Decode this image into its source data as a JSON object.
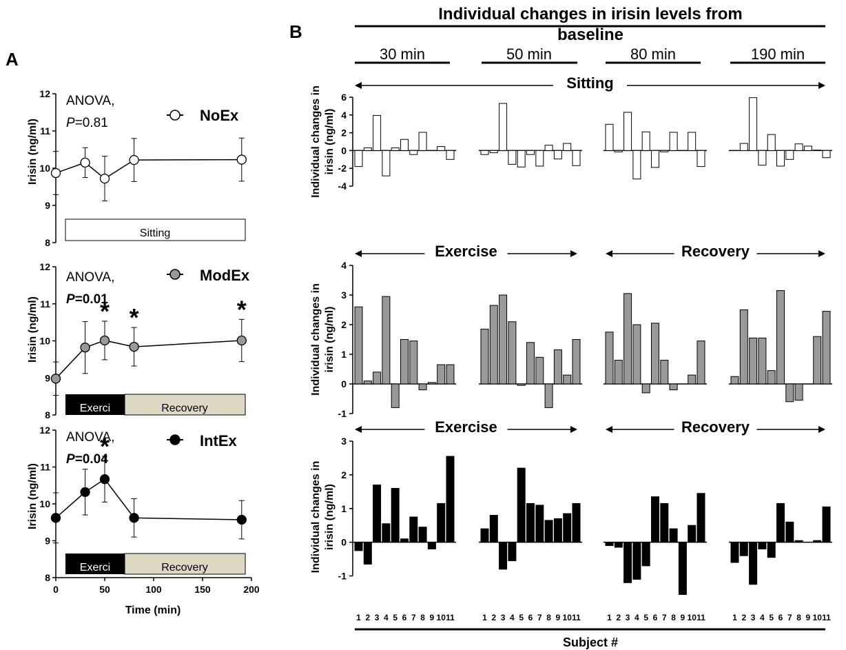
{
  "panel_a": {
    "letter": "A",
    "ylabel": "Irisin (ng/ml)",
    "xlabel": "Time (min)",
    "p_symbol": "P",
    "charts": [
      {
        "anova": "ANOVA,",
        "p_value": "=0.81",
        "legend": "NoEx",
        "bar_label": "Sitting"
      },
      {
        "anova": "ANOVA,",
        "p_value": "=0.01",
        "legend": "ModEx",
        "bar_labels": [
          "Exerci",
          "Recovery"
        ]
      },
      {
        "anova": "ANOVA,",
        "p_value": "=0.04",
        "legend": "IntEx",
        "bar_labels": [
          "Exerci",
          "Recovery"
        ]
      }
    ]
  },
  "panel_b": {
    "letter": "B",
    "title_line1": "Individual changes in irisin levels from",
    "title_line2": "baseline",
    "time_headers": [
      "30 min",
      "50 min",
      "80 min",
      "190 min"
    ],
    "ylabel_line1": "Individual changes in",
    "ylabel_line2": "irisin (ng/ml)",
    "xlabel": "Subject #",
    "subject_labels": [
      "1",
      "2",
      "3",
      "4",
      "5",
      "6",
      "7",
      "8",
      "9",
      "10",
      "11"
    ],
    "row_labels": [
      {
        "text": "Sitting",
        "span": "all"
      },
      {
        "text": [
          "Exercise",
          "Recovery"
        ],
        "span": "split"
      },
      {
        "text": [
          "Exercise",
          "Recovery"
        ],
        "span": "split"
      }
    ]
  },
  "colors": {
    "noex": "#ffffff",
    "modex": "#999999",
    "intex": "#000000",
    "recovery_bar": "#ddd8c4"
  },
  "chart_data": [
    {
      "type": "line",
      "name": "NoEx",
      "x": [
        0,
        30,
        50,
        80,
        190
      ],
      "y": [
        9.87,
        10.15,
        9.72,
        10.22,
        10.23
      ],
      "error": [
        0.58,
        0.4,
        0.6,
        0.58,
        0.58
      ],
      "significant": [
        false,
        false,
        false,
        false,
        false
      ],
      "ylim": [
        8,
        12
      ],
      "yticks": [
        8,
        9,
        10,
        11,
        12
      ],
      "xlim": [
        0,
        200
      ],
      "xticks": [
        0,
        50,
        100,
        150,
        200
      ],
      "marker_color": "#ffffff"
    },
    {
      "type": "line",
      "name": "ModEx",
      "x": [
        0,
        30,
        50,
        80,
        190
      ],
      "y": [
        8.98,
        9.82,
        10.01,
        9.84,
        10.01
      ],
      "error": [
        0.45,
        0.7,
        0.52,
        0.52,
        0.57
      ],
      "significant": [
        false,
        false,
        true,
        true,
        true
      ],
      "ylim": [
        8,
        12
      ],
      "yticks": [
        8,
        9,
        10,
        11,
        12
      ],
      "xlim": [
        0,
        200
      ],
      "xticks": [
        0,
        50,
        100,
        150,
        200
      ],
      "marker_color": "#999999"
    },
    {
      "type": "line",
      "name": "IntEx",
      "x": [
        0,
        30,
        50,
        80,
        190
      ],
      "y": [
        9.62,
        10.32,
        10.67,
        9.62,
        9.57
      ],
      "error": [
        0.68,
        0.62,
        0.62,
        0.52,
        0.52
      ],
      "significant": [
        false,
        false,
        true,
        false,
        false
      ],
      "ylim": [
        8,
        12
      ],
      "yticks": [
        8,
        9,
        10,
        11,
        12
      ],
      "xlim": [
        0,
        200
      ],
      "xticks": [
        0,
        50,
        100,
        150,
        200
      ],
      "marker_color": "#000000"
    },
    {
      "type": "bar",
      "name": "NoEx",
      "categories": [
        "1",
        "2",
        "3",
        "4",
        "5",
        "6",
        "7",
        "8",
        "9",
        "10",
        "11"
      ],
      "ylim": [
        -4,
        6
      ],
      "yticks": [
        -4,
        -2,
        0,
        2,
        4,
        6
      ],
      "fill": "#ffffff",
      "series": [
        {
          "name": "30 min",
          "values": [
            -1.8,
            0.3,
            3.95,
            -2.85,
            0.3,
            1.25,
            -0.45,
            2.05,
            0.0,
            0.45,
            -1.0
          ]
        },
        {
          "name": "50 min",
          "values": [
            -0.45,
            -0.25,
            5.3,
            -1.55,
            -1.85,
            -0.45,
            -1.75,
            0.6,
            -0.95,
            0.8,
            -1.7
          ]
        },
        {
          "name": "80 min",
          "values": [
            2.95,
            -0.15,
            4.3,
            -3.2,
            2.1,
            -1.9,
            -0.15,
            2.05,
            0.0,
            2.05,
            -1.8
          ]
        },
        {
          "name": "190 min",
          "values": [
            0.0,
            0.8,
            5.95,
            -1.65,
            1.8,
            -1.75,
            -1.0,
            0.75,
            0.5,
            0.05,
            -0.8
          ]
        }
      ]
    },
    {
      "type": "bar",
      "name": "ModEx",
      "categories": [
        "1",
        "2",
        "3",
        "4",
        "5",
        "6",
        "7",
        "8",
        "9",
        "10",
        "11"
      ],
      "ylim": [
        -1,
        4
      ],
      "yticks": [
        -1,
        0,
        1,
        2,
        3,
        4
      ],
      "fill": "#999999",
      "series": [
        {
          "name": "30 min",
          "values": [
            2.6,
            0.1,
            0.4,
            2.95,
            -0.8,
            1.5,
            1.45,
            -0.2,
            0.05,
            0.65,
            0.65
          ]
        },
        {
          "name": "50 min",
          "values": [
            1.85,
            2.65,
            3.0,
            2.1,
            -0.05,
            1.4,
            0.9,
            -0.8,
            1.15,
            0.3,
            1.5
          ]
        },
        {
          "name": "80 min",
          "values": [
            1.75,
            0.8,
            3.05,
            2.0,
            -0.3,
            2.05,
            0.8,
            -0.2,
            0.0,
            0.3,
            1.45
          ]
        },
        {
          "name": "190 min",
          "values": [
            0.25,
            2.5,
            1.55,
            1.55,
            0.45,
            3.15,
            -0.6,
            -0.55,
            0.0,
            1.6,
            2.45
          ]
        }
      ]
    },
    {
      "type": "bar",
      "name": "IntEx",
      "categories": [
        "1",
        "2",
        "3",
        "4",
        "5",
        "6",
        "7",
        "8",
        "9",
        "10",
        "11"
      ],
      "ylim": [
        -1.5,
        3
      ],
      "yticks": [
        -1,
        0,
        1,
        2,
        3
      ],
      "fill": "#000000",
      "series": [
        {
          "name": "30 min",
          "values": [
            -0.25,
            -0.65,
            1.7,
            0.55,
            1.6,
            0.1,
            0.75,
            0.45,
            -0.2,
            1.15,
            2.55
          ]
        },
        {
          "name": "50 min",
          "values": [
            0.4,
            0.8,
            -0.8,
            -0.55,
            2.2,
            1.15,
            1.1,
            0.65,
            0.7,
            0.85,
            1.15
          ]
        },
        {
          "name": "80 min",
          "values": [
            -0.1,
            -0.15,
            -1.2,
            -1.1,
            -0.7,
            1.35,
            1.15,
            0.4,
            -1.55,
            0.5,
            1.45
          ]
        },
        {
          "name": "190 min",
          "values": [
            -0.6,
            -0.4,
            -1.25,
            -0.2,
            -0.45,
            1.15,
            0.6,
            0.05,
            0.0,
            0.05,
            1.05
          ]
        }
      ]
    }
  ]
}
